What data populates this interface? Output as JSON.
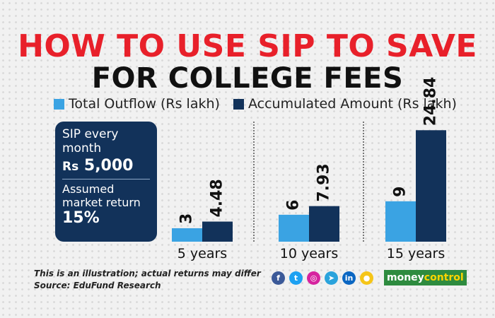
{
  "title": {
    "line1": "HOW TO USE SIP TO SAVE",
    "line2": "FOR COLLEGE FEES"
  },
  "legend": [
    {
      "label": "Total Outflow",
      "unit": "(Rs lakh)",
      "color": "#3aa3e3"
    },
    {
      "label": "Accumulated Amount",
      "unit": "(Rs lakh)",
      "color": "#12325a"
    }
  ],
  "info_box": {
    "line1": "SIP every month",
    "amount_prefix": "Rs",
    "amount_value": "5,000",
    "line2": "Assumed market return",
    "return_value": "15%"
  },
  "chart_data": {
    "type": "bar",
    "categories": [
      "5 years",
      "10 years",
      "15 years"
    ],
    "series": [
      {
        "name": "Total Outflow (Rs lakh)",
        "values": [
          3,
          6,
          9
        ],
        "labels": [
          "3",
          "6",
          "9"
        ],
        "color": "#3aa3e3"
      },
      {
        "name": "Accumulated Amount (Rs lakh)",
        "values": [
          4.48,
          7.93,
          24.84
        ],
        "labels": [
          "4.48",
          "7.93",
          "24.84"
        ],
        "color": "#12325a"
      }
    ]
  },
  "footer": {
    "note": "This is an illustration; actual returns may differ",
    "source": "Source: EduFund Research"
  },
  "social_icons": [
    {
      "name": "facebook-icon",
      "glyph": "f",
      "color": "#3b5998"
    },
    {
      "name": "twitter-icon",
      "glyph": "t",
      "color": "#1da1f2"
    },
    {
      "name": "instagram-icon",
      "glyph": "◎",
      "color": "#d6249f"
    },
    {
      "name": "telegram-icon",
      "glyph": "➤",
      "color": "#2aa3dc"
    },
    {
      "name": "linkedin-icon",
      "glyph": "in",
      "color": "#0a66c2"
    },
    {
      "name": "koo-icon",
      "glyph": "●",
      "color": "#f5c518"
    }
  ],
  "brand": {
    "part1": "money",
    "part2": "control"
  }
}
